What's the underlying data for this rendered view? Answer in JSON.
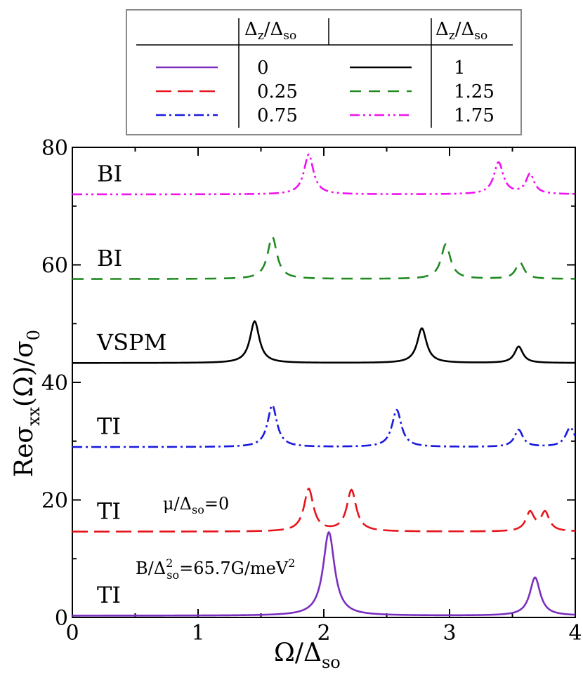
{
  "chart_data": {
    "type": "line",
    "title": "",
    "xlabel": {
      "base": "Ω/Δ",
      "sub": "so"
    },
    "ylabel": {
      "pre": "Reσ",
      "sub": "xx",
      "mid": "(Ω)/σ",
      "sub2": "0"
    },
    "xlim": [
      0,
      4
    ],
    "ylim": [
      0,
      80
    ],
    "xticks": [
      0,
      1,
      2,
      3,
      4
    ],
    "yticks": [
      0,
      20,
      40,
      60,
      80
    ],
    "grid": false,
    "legend": {
      "placement": "top-center",
      "header": {
        "base": "Δ",
        "sub1": "z",
        "slash": "/Δ",
        "sub2": "so"
      },
      "entries": [
        {
          "label": "0",
          "series": 0
        },
        {
          "label": "0.25",
          "series": 1
        },
        {
          "label": "0.75",
          "series": 2
        },
        {
          "label": "1",
          "series": 3
        },
        {
          "label": "1.25",
          "series": 4
        },
        {
          "label": "1.75",
          "series": 5
        }
      ]
    },
    "annotations": {
      "mu": {
        "pre": "μ/Δ",
        "sub": "so",
        "post": "=0"
      },
      "field": {
        "pre": "B/Δ",
        "sup": "2",
        "sub": "so",
        "post": "=65.7G/meV",
        "sup2": "2"
      }
    },
    "series": [
      {
        "name": "0",
        "phase": "TI",
        "color": "#7b2fbe",
        "dash": "solid",
        "baseline": 0.3,
        "peaks": [
          {
            "x": 2.04,
            "h": 14.2,
            "w": 0.055
          },
          {
            "x": 3.68,
            "h": 6.5,
            "w": 0.05
          }
        ]
      },
      {
        "name": "0.25",
        "phase": "TI",
        "color": "#e8141c",
        "dash": "dash",
        "baseline": 14.6,
        "peaks": [
          {
            "x": 1.88,
            "h": 7.2,
            "w": 0.045
          },
          {
            "x": 2.22,
            "h": 7.0,
            "w": 0.045
          },
          {
            "x": 3.64,
            "h": 3.2,
            "w": 0.04
          },
          {
            "x": 3.76,
            "h": 3.2,
            "w": 0.04
          }
        ]
      },
      {
        "name": "0.75",
        "phase": "TI",
        "color": "#1a1adf",
        "dash": "dashdot",
        "baseline": 29.0,
        "peaks": [
          {
            "x": 1.59,
            "h": 7.1,
            "w": 0.045
          },
          {
            "x": 2.58,
            "h": 6.3,
            "w": 0.045
          },
          {
            "x": 3.55,
            "h": 2.9,
            "w": 0.04
          },
          {
            "x": 3.96,
            "h": 3.3,
            "w": 0.045
          }
        ]
      },
      {
        "name": "1",
        "phase": "VSPM",
        "color": "#000000",
        "dash": "solid",
        "baseline": 43.3,
        "peaks": [
          {
            "x": 1.45,
            "h": 7.1,
            "w": 0.045
          },
          {
            "x": 2.78,
            "h": 5.9,
            "w": 0.045
          },
          {
            "x": 3.55,
            "h": 2.8,
            "w": 0.04
          }
        ]
      },
      {
        "name": "1.25",
        "phase": "BI",
        "color": "#218a21",
        "dash": "dash2",
        "baseline": 57.6,
        "peaks": [
          {
            "x": 1.59,
            "h": 7.2,
            "w": 0.045
          },
          {
            "x": 2.97,
            "h": 5.9,
            "w": 0.045
          },
          {
            "x": 3.56,
            "h": 2.8,
            "w": 0.04
          }
        ]
      },
      {
        "name": "1.75",
        "phase": "BI",
        "color": "#f012f0",
        "dash": "dashdotdot",
        "baseline": 72.0,
        "peaks": [
          {
            "x": 1.88,
            "h": 6.8,
            "w": 0.045
          },
          {
            "x": 3.39,
            "h": 5.4,
            "w": 0.045
          },
          {
            "x": 3.64,
            "h": 3.4,
            "w": 0.04
          }
        ]
      }
    ]
  }
}
